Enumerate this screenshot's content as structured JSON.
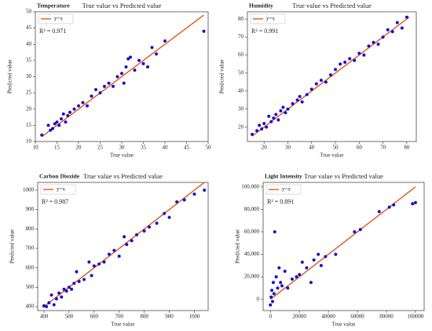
{
  "chart_data": [
    {
      "type": "scatter",
      "title": "True value vs Predicted value",
      "annotation": "Temperature",
      "r2_label": "R² = 0.971",
      "x_label": "True value",
      "y_label": "Predicted value",
      "xlim": [
        10,
        50
      ],
      "ylim": [
        10,
        50
      ],
      "xticks": [
        10,
        15,
        20,
        25,
        30,
        35,
        40,
        45,
        50
      ],
      "yticks": [
        10,
        15,
        20,
        25,
        30,
        35,
        40,
        45,
        50
      ],
      "line": {
        "name": "y=x",
        "color": "#e0561b",
        "x": [
          11.5,
          49
        ],
        "values": [
          11.5,
          49
        ]
      },
      "points": {
        "color": "#1a10c8",
        "x": [
          11.5,
          13,
          13.5,
          14,
          14.5,
          15,
          15.5,
          16,
          16.5,
          17,
          17.5,
          18,
          19,
          20,
          21,
          22,
          23,
          24,
          25,
          26,
          27,
          28,
          29,
          30,
          30.5,
          31,
          31.5,
          32,
          33,
          34,
          35,
          36,
          37,
          38,
          40,
          49
        ],
        "values": [
          12,
          15,
          13.5,
          14,
          15.5,
          16,
          15,
          17,
          18.5,
          16,
          18,
          19,
          20,
          21,
          22,
          21,
          24,
          26,
          25,
          27,
          28,
          27,
          30,
          31,
          28,
          33,
          35.5,
          36,
          32,
          35,
          34,
          33,
          39,
          37,
          41,
          44
        ]
      }
    },
    {
      "type": "scatter",
      "title": "True value vs Predicted value",
      "annotation": "Humidity",
      "r2_label": "R² = 0.991",
      "x_label": "True value",
      "y_label": "Predicted value",
      "xlim": [
        13,
        84
      ],
      "ylim": [
        12,
        84
      ],
      "xticks": [
        20,
        30,
        40,
        50,
        60,
        70,
        80
      ],
      "yticks": [
        20,
        30,
        40,
        50,
        60,
        70,
        80
      ],
      "line": {
        "name": "y=x",
        "color": "#e0561b",
        "x": [
          15,
          81
        ],
        "values": [
          15,
          81
        ]
      },
      "points": {
        "color": "#1a10c8",
        "x": [
          15,
          17,
          18,
          19,
          20,
          21,
          22,
          23,
          24,
          25,
          26,
          27,
          28,
          29,
          30,
          32,
          34,
          35,
          36,
          38,
          40,
          42,
          44,
          46,
          48,
          50,
          52,
          54,
          56,
          58,
          60,
          62,
          64,
          66,
          68,
          70,
          72,
          74,
          76,
          78,
          80
        ],
        "values": [
          16,
          18,
          21,
          19,
          22,
          20,
          26,
          23,
          25,
          27,
          24,
          29,
          31,
          28,
          30,
          33,
          35,
          37,
          34,
          38,
          41,
          44,
          46,
          45,
          49,
          52,
          55,
          56,
          58,
          57,
          61,
          60,
          65,
          67,
          66,
          70,
          74,
          73,
          78,
          75,
          81
        ]
      }
    },
    {
      "type": "scatter",
      "title": "True value vs Predicted value",
      "annotation": "Carbon Dioxide",
      "r2_label": "R² = 0.987",
      "x_label": "True value",
      "y_label": "Predicted value",
      "xlim": [
        375,
        1055
      ],
      "ylim": [
        380,
        1040
      ],
      "xticks": [
        400,
        500,
        600,
        700,
        800,
        900,
        1000
      ],
      "yticks": [
        400,
        500,
        600,
        700,
        800,
        900,
        1000
      ],
      "line": {
        "name": "y=x",
        "color": "#e0561b",
        "x": [
          395,
          1040
        ],
        "values": [
          395,
          1040
        ]
      },
      "points": {
        "color": "#1a10c8",
        "x": [
          400,
          410,
          420,
          430,
          440,
          450,
          460,
          470,
          480,
          490,
          500,
          510,
          520,
          530,
          540,
          560,
          580,
          590,
          600,
          620,
          640,
          660,
          680,
          700,
          720,
          730,
          750,
          770,
          800,
          820,
          850,
          880,
          900,
          930,
          960,
          1000,
          1040
        ],
        "values": [
          405,
          400,
          420,
          460,
          410,
          440,
          470,
          450,
          490,
          480,
          500,
          490,
          520,
          580,
          530,
          540,
          630,
          560,
          610,
          620,
          630,
          670,
          690,
          660,
          760,
          720,
          740,
          770,
          790,
          810,
          830,
          880,
          860,
          940,
          950,
          980,
          1000
        ]
      }
    },
    {
      "type": "scatter",
      "title": "True value vs Predicted value",
      "annotation": "Light Intensity",
      "r2_label": "R² = 0.891",
      "x_label": "True value",
      "y_label": "Predicted value",
      "xlim": [
        -5000,
        106000
      ],
      "ylim": [
        -10000,
        104000
      ],
      "xticks": [
        0,
        20000,
        40000,
        60000,
        80000,
        100000
      ],
      "yticks": [
        0,
        {
          "value": 20000,
          "label": "20,000"
        },
        {
          "value": 40000,
          "label": "40,000"
        },
        {
          "value": 60000,
          "label": "60,000"
        },
        {
          "value": 80000,
          "label": "80,000"
        },
        {
          "value": 100000,
          "label": "100,000"
        }
      ],
      "line": {
        "name": "y=x",
        "color": "#e0561b",
        "x": [
          0,
          100000
        ],
        "values": [
          0,
          100000
        ]
      },
      "points": {
        "color": "#1a10c8",
        "x": [
          0,
          500,
          1000,
          1500,
          2000,
          2500,
          3000,
          4000,
          5000,
          6000,
          7000,
          8000,
          10000,
          12000,
          15000,
          18000,
          20000,
          22000,
          25000,
          28000,
          30000,
          33000,
          35000,
          38000,
          45000,
          58000,
          62000,
          75000,
          82000,
          85000,
          98000,
          100000
        ],
        "values": [
          -5000,
          2000,
          8000,
          -2000,
          15000,
          5000,
          60000,
          20000,
          10000,
          28000,
          15000,
          12000,
          25000,
          10000,
          18000,
          20000,
          22000,
          33000,
          28000,
          15000,
          35000,
          40000,
          30000,
          38000,
          40000,
          60000,
          62000,
          78000,
          82000,
          84000,
          85000,
          86000
        ]
      }
    }
  ]
}
